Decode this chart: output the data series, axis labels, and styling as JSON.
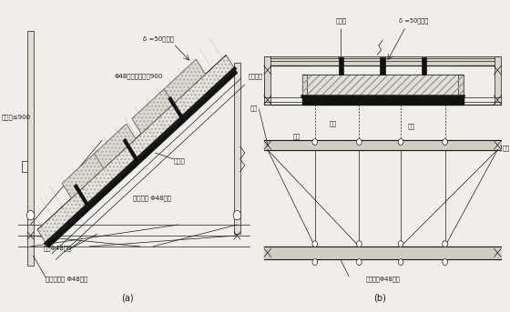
{
  "bg_color": "#f0eeea",
  "line_color": "#1a1a1a",
  "title_a": "(a)",
  "title_b": "(b)",
  "label_a_step": "δ =50踏步状",
  "label_a_hbar": "Φ48钉管横拉杠䃩900",
  "label_a_vbar": "立杠䃩≤900",
  "label_a_form": "钉模板",
  "label_a_back": "纵横背杠 Φ48钉管",
  "label_a_diag": "斜撞Φ48钉管",
  "label_a_hpipe": "纵横水平杠 Φ48钉管",
  "label_b_form": "钉模板",
  "label_b_step": "δ =50踏步状",
  "label_b_pull": "钉管拉杠",
  "label_b_diag": "斜撞",
  "label_b_steel": "钉模",
  "label_b_wood": "木模",
  "label_b_back": "背杠",
  "label_b_vert": "立杠",
  "label_b_pipe": "纵横背杠Φ48钉管"
}
